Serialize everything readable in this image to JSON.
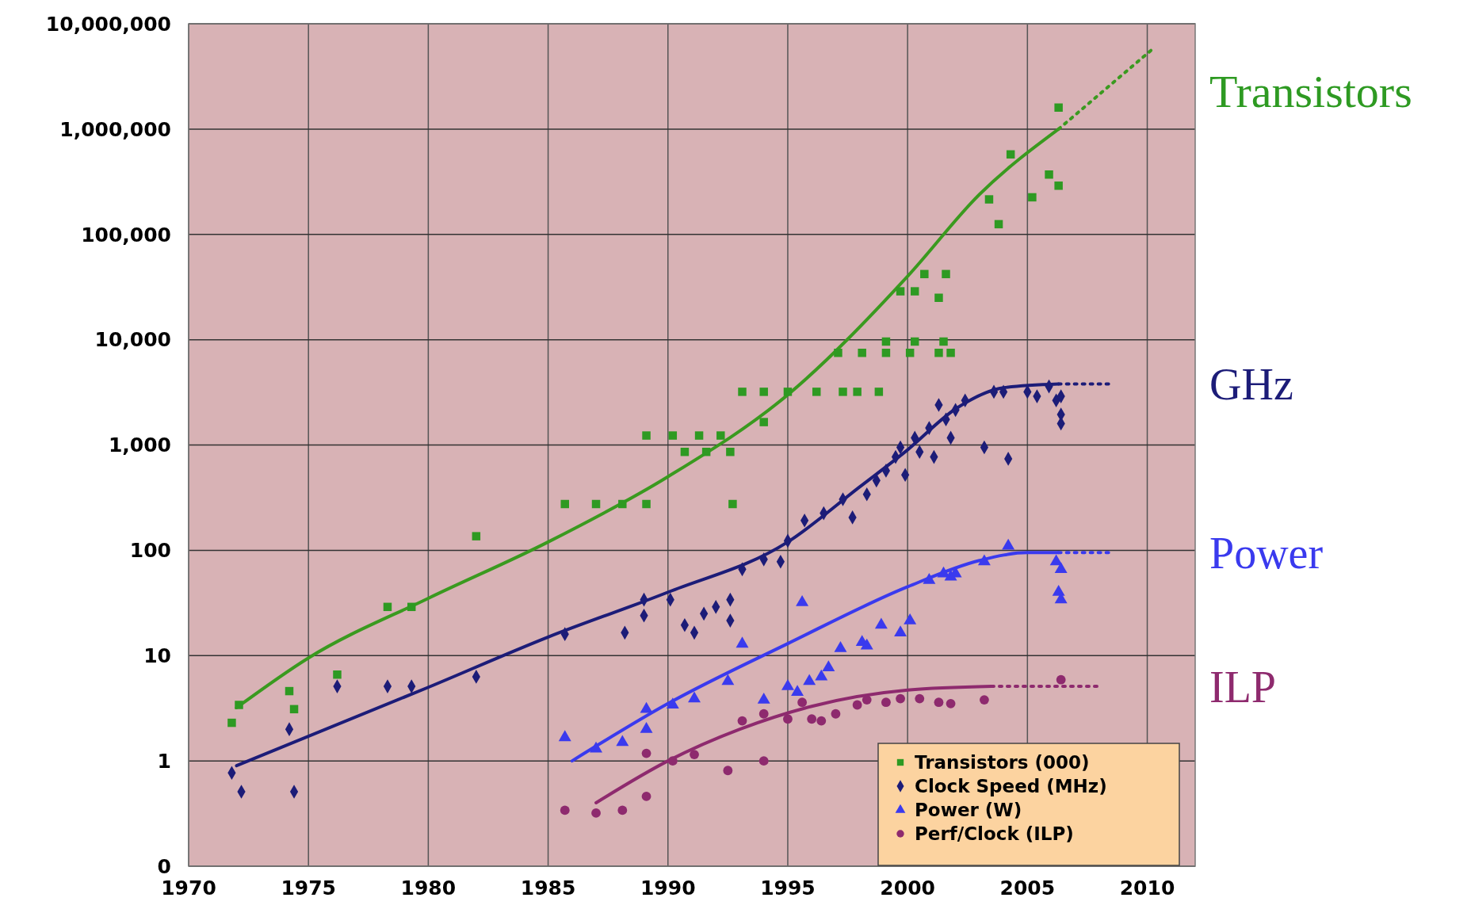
{
  "chart_data": {
    "type": "scatter",
    "log": true,
    "grid": true,
    "legend": "bottom right",
    "xlim": [
      1970,
      2012
    ],
    "xticks": [
      1970,
      1975,
      1980,
      1985,
      1990,
      1995,
      2000,
      2005,
      2010
    ],
    "ylim": [
      0.1,
      10000000
    ],
    "yticks": [
      {
        "value": 0.1,
        "label": "0"
      },
      1,
      10,
      {
        "value": 100,
        "label": "100"
      },
      {
        "value": 1000,
        "label": "1,000"
      },
      {
        "value": 10000,
        "label": "10,000"
      },
      {
        "value": 100000,
        "label": "100,000"
      },
      {
        "value": 1000000,
        "label": "1,000,000"
      },
      {
        "value": 10000000,
        "label": "10,000,000"
      }
    ],
    "annotations": [
      "Transistors",
      "GHz",
      "Power",
      "ILP"
    ],
    "series": [
      {
        "name": "Transistors (000)",
        "marker": "square",
        "color": "#2e9a22",
        "x": [
          1971.8,
          1972.1,
          1974.2,
          1974.4,
          1976.2,
          1978.3,
          1979.3,
          1982.0,
          1985.7,
          1987.0,
          1988.1,
          1989.1,
          1989.1,
          1990.2,
          1990.7,
          1991.3,
          1991.6,
          1992.6,
          1992.2,
          1992.7,
          1993.1,
          1994.0,
          1994.0,
          1995.0,
          1996.2,
          1997.3,
          1997.9,
          1998.8,
          1997.1,
          1998.1,
          1999.1,
          2000.1,
          2001.3,
          2001.8,
          1999.1,
          2000.3,
          2001.5,
          1999.7,
          2000.3,
          2000.7,
          2001.6,
          2001.3,
          2003.4,
          2003.8,
          2004.3,
          2005.2,
          2005.9,
          2006.3,
          2006.3
        ],
        "values": [
          2.3,
          3.4,
          4.6,
          3.1,
          6.6,
          29,
          29,
          136,
          275,
          275,
          275,
          275,
          1230,
          1230,
          860,
          1230,
          860,
          860,
          1230,
          275,
          3200,
          1650,
          3200,
          3200,
          3200,
          3200,
          3200,
          3200,
          7500,
          7500,
          7500,
          7500,
          7500,
          7500,
          9600,
          9600,
          9600,
          28800,
          28800,
          42000,
          42000,
          25000,
          215000,
          125000,
          575000,
          225000,
          370000,
          1600000,
          290000
        ]
      },
      {
        "name": "Clock Speed (MHz)",
        "marker": "diamond",
        "color": "#1c1c78",
        "x": [
          1971.8,
          1972.2,
          1974.2,
          1974.4,
          1976.2,
          1978.3,
          1979.3,
          1982.0,
          1985.7,
          1988.2,
          1989.0,
          1989.0,
          1990.1,
          1990.7,
          1991.1,
          1991.5,
          1992.0,
          1992.6,
          1992.6,
          1993.1,
          1994.0,
          1994.7,
          1995.0,
          1995.7,
          1996.5,
          1997.3,
          1997.7,
          1998.3,
          1998.7,
          1999.1,
          1999.5,
          1999.7,
          1999.9,
          2000.3,
          2000.5,
          2000.9,
          2001.1,
          2001.3,
          2001.6,
          2001.8,
          2002.0,
          2002.4,
          2003.2,
          2003.6,
          2004.0,
          2004.2,
          2005.0,
          2005.4,
          2005.9,
          2006.2,
          2006.4,
          2006.4,
          2006.4
        ],
        "values": [
          0.77,
          0.51,
          2.0,
          0.51,
          5.1,
          5.1,
          5.1,
          6.3,
          16,
          16.5,
          24,
          34,
          34,
          19.5,
          16.5,
          25,
          29,
          34,
          21.5,
          66,
          82,
          78,
          123,
          192,
          225,
          305,
          205,
          340,
          460,
          570,
          770,
          950,
          520,
          1170,
          860,
          1450,
          770,
          2400,
          1750,
          1170,
          2150,
          2650,
          950,
          3200,
          3200,
          740,
          3200,
          2900,
          3600,
          2650,
          1950,
          1600,
          2900
        ]
      },
      {
        "name": "Power (W)",
        "marker": "triangle",
        "color": "#3a3aee",
        "x": [
          1985.7,
          1987.0,
          1988.1,
          1989.1,
          1989.1,
          1990.2,
          1991.1,
          1992.5,
          1993.1,
          1994.0,
          1995.0,
          1995.4,
          1995.6,
          1995.9,
          1996.4,
          1996.7,
          1997.2,
          1998.1,
          1998.3,
          1998.9,
          1999.7,
          2000.1,
          2000.9,
          2001.5,
          2001.8,
          2002.0,
          2003.2,
          2004.2,
          2006.2,
          2006.4,
          2006.3,
          2006.4
        ],
        "values": [
          1.67,
          1.3,
          1.5,
          3.1,
          2.0,
          3.4,
          3.9,
          5.7,
          12.9,
          3.8,
          5.1,
          4.5,
          32,
          5.7,
          6.3,
          7.7,
          11.7,
          13.4,
          12.4,
          19.5,
          16.5,
          21.5,
          52,
          60,
          56,
          60,
          78,
          110,
          78,
          66,
          40,
          34
        ]
      },
      {
        "name": "Perf/Clock (ILP)",
        "marker": "circle",
        "color": "#8e2a6e",
        "x": [
          1985.7,
          1987.0,
          1988.1,
          1989.1,
          1989.1,
          1990.2,
          1991.1,
          1992.5,
          1993.1,
          1994.0,
          1994.0,
          1995.0,
          1995.6,
          1996.0,
          1996.4,
          1997.0,
          1997.9,
          1998.3,
          1999.1,
          1999.7,
          2000.5,
          2001.3,
          2001.8,
          2003.2,
          2006.4
        ],
        "values": [
          0.34,
          0.32,
          0.34,
          1.18,
          0.46,
          1.0,
          1.15,
          0.81,
          2.4,
          1.0,
          2.8,
          2.5,
          3.6,
          2.5,
          2.4,
          2.8,
          3.4,
          3.8,
          3.6,
          3.9,
          3.9,
          3.6,
          3.5,
          3.8,
          5.9
        ]
      },
      {
        "type": "line",
        "marker": "none",
        "line_style": "solid",
        "color": "#3a9a1f",
        "x": [
          1972,
          1975,
          1980,
          1985,
          1990,
          1995,
          2000,
          2003,
          2006.3
        ],
        "values": [
          3.2,
          9.5,
          35,
          120,
          500,
          3000,
          40000,
          240000,
          1000000
        ]
      },
      {
        "type": "line",
        "marker": "none",
        "line_style": "dotted",
        "color": "#3a9a1f",
        "x": [
          2006.3,
          2010.2
        ],
        "values": [
          1000000,
          5700000
        ]
      },
      {
        "type": "line",
        "marker": "none",
        "line_style": "solid",
        "color": "#1c1c78",
        "x": [
          1972,
          1980,
          1985,
          1990,
          1995,
          1998,
          2000,
          2002,
          2004,
          2006.3
        ],
        "values": [
          0.9,
          5,
          15,
          40,
          120,
          400,
          900,
          2200,
          3500,
          3800
        ]
      },
      {
        "type": "line",
        "marker": "none",
        "line_style": "dotted",
        "color": "#1c1c78",
        "x": [
          2006.3,
          2008.5
        ],
        "values": [
          3800,
          3800
        ]
      },
      {
        "type": "line",
        "marker": "none",
        "line_style": "solid",
        "color": "#3a3aee",
        "x": [
          1986,
          1990,
          1995,
          2000,
          2003,
          2005,
          2006.3
        ],
        "values": [
          1,
          3.5,
          13,
          45,
          80,
          95,
          95
        ]
      },
      {
        "type": "line",
        "marker": "none",
        "line_style": "dotted",
        "color": "#3a3aee",
        "x": [
          2006.3,
          2008.4
        ],
        "values": [
          95,
          95
        ]
      },
      {
        "type": "line",
        "marker": "none",
        "line_style": "solid",
        "color": "#8e2a6e",
        "x": [
          1987,
          1990,
          1993,
          1996,
          2000,
          2003.5
        ],
        "values": [
          0.4,
          1,
          2,
          3.3,
          4.7,
          5.1
        ]
      },
      {
        "type": "line",
        "marker": "none",
        "line_style": "dotted",
        "color": "#8e2a6e",
        "x": [
          2003.5,
          2008
        ],
        "values": [
          5.1,
          5.1
        ]
      }
    ]
  }
}
